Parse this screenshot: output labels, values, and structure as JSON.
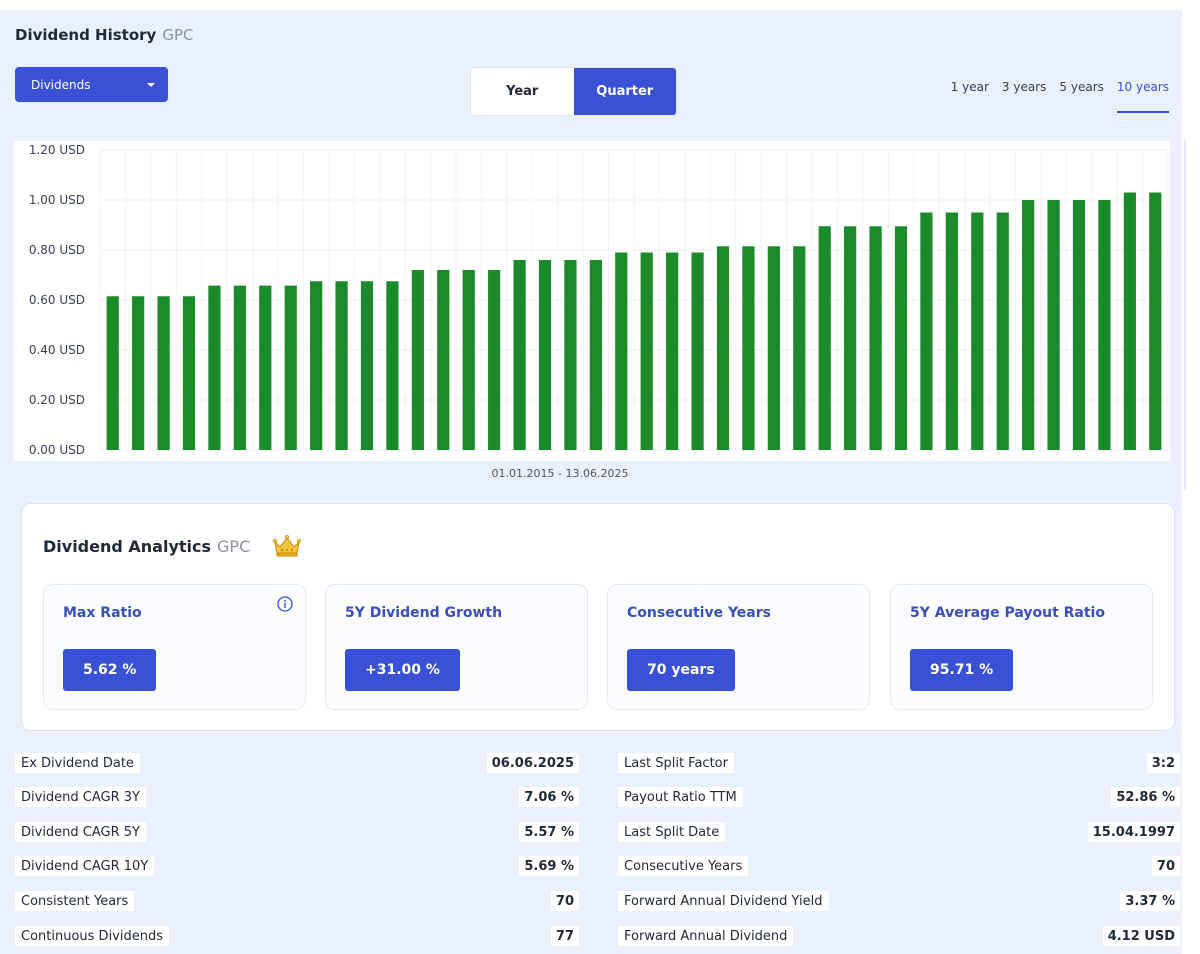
{
  "header": {
    "title": "Dividend History",
    "ticker": "GPC"
  },
  "dropdown": {
    "selected": "Dividends"
  },
  "toggle": [
    {
      "label": "Year",
      "active": false
    },
    {
      "label": "Quarter",
      "active": true
    }
  ],
  "periods": [
    {
      "label": "1 year",
      "active": false
    },
    {
      "label": "3 years",
      "active": false
    },
    {
      "label": "5 years",
      "active": false
    },
    {
      "label": "10 years",
      "active": true
    }
  ],
  "chart_data": {
    "type": "bar",
    "ylim": [
      0,
      1.2
    ],
    "y_ticks": [
      "0.00 USD",
      "0.20 USD",
      "0.40 USD",
      "0.60 USD",
      "0.80 USD",
      "1.00 USD",
      "1.20 USD"
    ],
    "bar_color": "#1a8a2a",
    "grid": true,
    "values": [
      0.615,
      0.615,
      0.615,
      0.615,
      0.6575,
      0.6575,
      0.6575,
      0.6575,
      0.675,
      0.675,
      0.675,
      0.675,
      0.72,
      0.72,
      0.72,
      0.72,
      0.76,
      0.76,
      0.76,
      0.76,
      0.79,
      0.79,
      0.79,
      0.79,
      0.815,
      0.815,
      0.815,
      0.815,
      0.895,
      0.895,
      0.895,
      0.895,
      0.95,
      0.95,
      0.95,
      0.95,
      1.0,
      1.0,
      1.0,
      1.0,
      1.03,
      1.03
    ]
  },
  "range_label": "01.01.2015 - 13.06.2025",
  "analytics": {
    "title": "Dividend Analytics",
    "ticker": "GPC",
    "icon": "crown-icon",
    "cards": [
      {
        "label": "Max Ratio",
        "value": "5.62 %",
        "info": true
      },
      {
        "label": "5Y Dividend Growth",
        "value": "+31.00 %",
        "info": false
      },
      {
        "label": "Consecutive Years",
        "value": "70 years",
        "info": false
      },
      {
        "label": "5Y Average Payout Ratio",
        "value": "95.71 %",
        "info": false
      }
    ]
  },
  "stats_left": [
    {
      "label": "Ex Dividend Date",
      "value": "06.06.2025"
    },
    {
      "label": "Dividend CAGR 3Y",
      "value": "7.06 %"
    },
    {
      "label": "Dividend CAGR 5Y",
      "value": "5.57 %"
    },
    {
      "label": "Dividend CAGR 10Y",
      "value": "5.69 %"
    },
    {
      "label": "Consistent Years",
      "value": "70"
    },
    {
      "label": "Continuous Dividends",
      "value": "77"
    }
  ],
  "stats_right": [
    {
      "label": "Last Split Factor",
      "value": "3:2"
    },
    {
      "label": "Payout Ratio TTM",
      "value": "52.86 %"
    },
    {
      "label": "Last Split Date",
      "value": "15.04.1997"
    },
    {
      "label": "Consecutive Years",
      "value": "70"
    },
    {
      "label": "Forward Annual Dividend Yield",
      "value": "3.37 %"
    },
    {
      "label": "Forward Annual Dividend",
      "value": "4.12 USD"
    }
  ]
}
